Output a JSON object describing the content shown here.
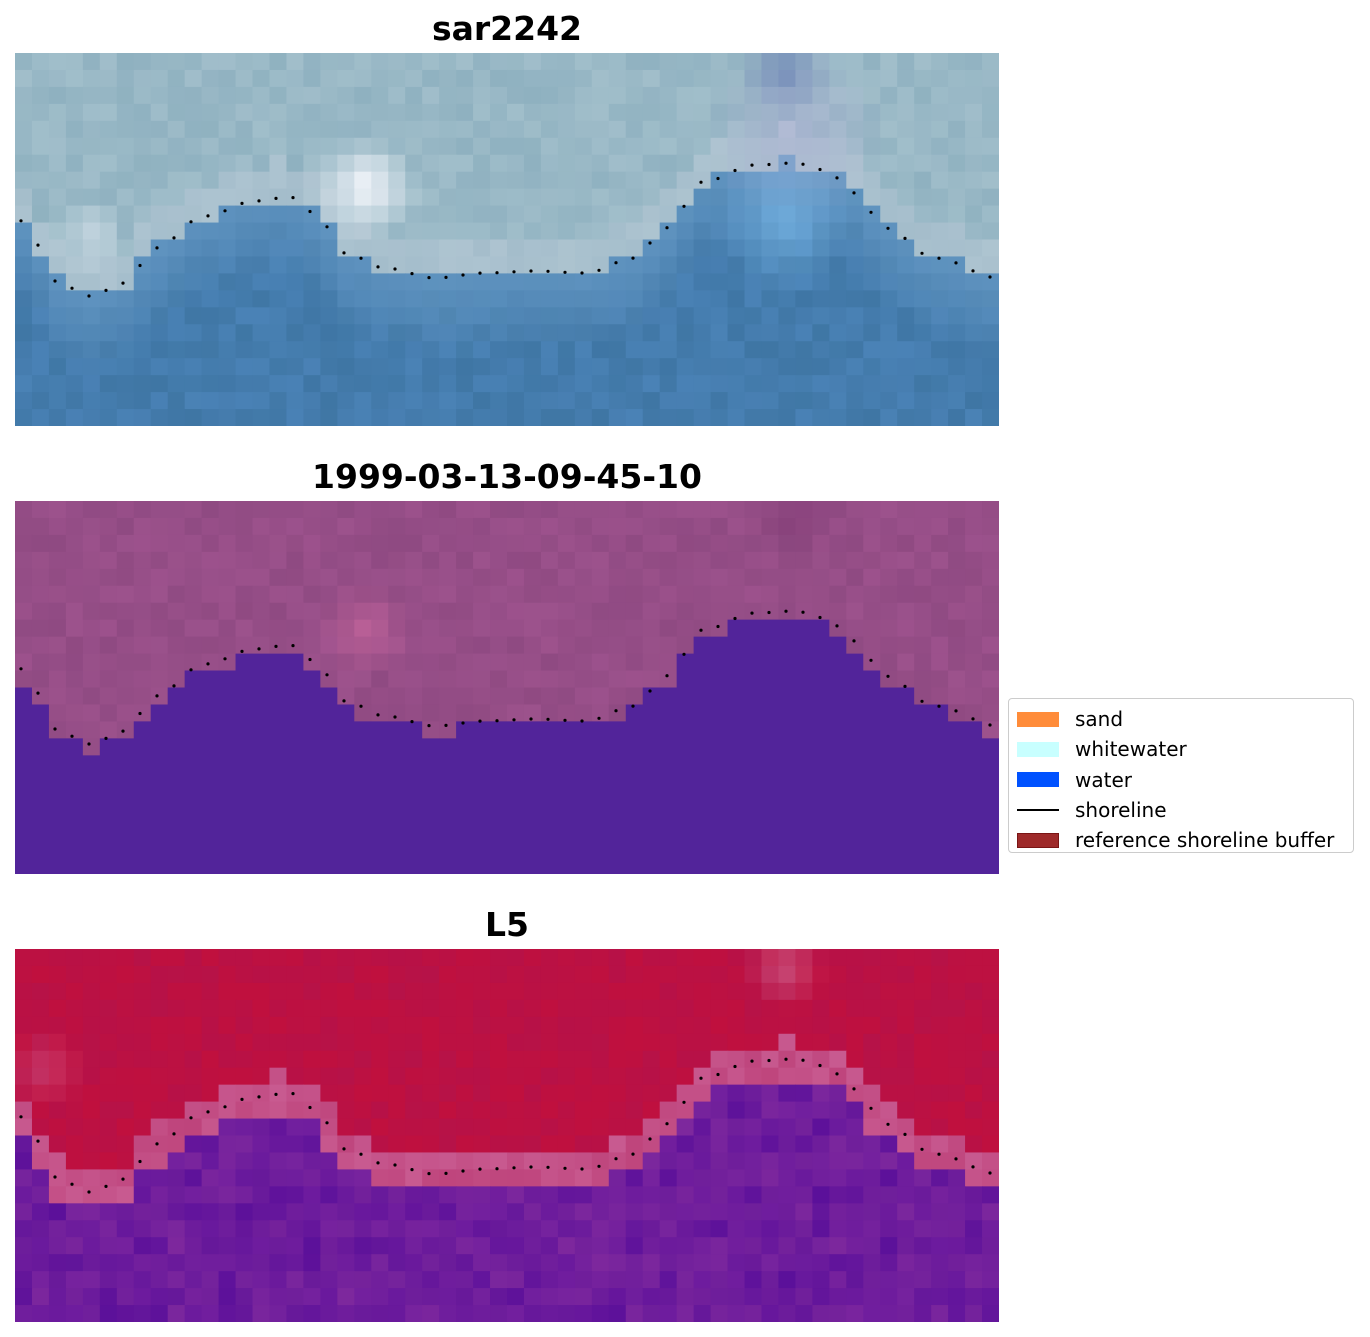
{
  "panels": [
    {
      "id": "rgb",
      "title": "sar2242"
    },
    {
      "id": "classified",
      "title": "1999-03-13-09-45-10"
    },
    {
      "id": "index",
      "title": "L5"
    }
  ],
  "legend": {
    "items": [
      {
        "label": "sand",
        "color": "#ff8c3a",
        "kind": "patch"
      },
      {
        "label": "whitewater",
        "color": "#c8ffff",
        "kind": "patch"
      },
      {
        "label": "water",
        "color": "#0052ff",
        "kind": "patch"
      },
      {
        "label": "shoreline",
        "color": "#000000",
        "kind": "line"
      },
      {
        "label": "reference shoreline buffer",
        "color": "#9e2a2a",
        "kind": "patch-edge"
      }
    ]
  },
  "colors": {
    "rgb_water": "#3f76a4",
    "rgb_beach": "#98b6c6",
    "rgb_whitewater": "#f4f6fb",
    "classified_sand_overlay": "#8f4a82",
    "classified_water": "#52249a",
    "index_land": "#c0103e",
    "index_water": "#6e1c9e",
    "index_buffer": "#c85a90"
  }
}
